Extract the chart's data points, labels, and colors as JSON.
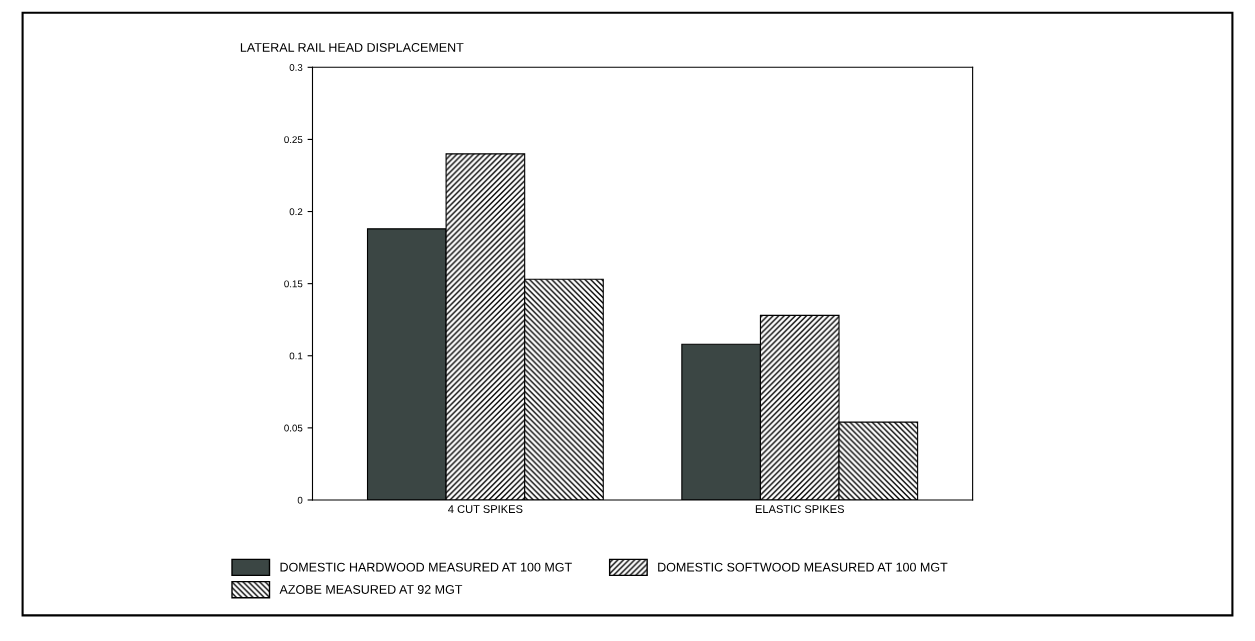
{
  "chart_data": {
    "type": "bar",
    "ylabel": "LATERAL RAIL HEAD DISPLACEMENT",
    "categories": [
      "4 CUT SPIKES",
      "ELASTIC SPIKES"
    ],
    "series": [
      {
        "name": "DOMESTIC HARDWOOD MEASURED AT 100 MGT",
        "color": "#3b4644",
        "values": [
          0.188,
          0.108
        ]
      },
      {
        "name": "DOMESTIC SOFTWOOD MEASURED AT 100 MGT",
        "color": "#000000",
        "values": [
          0.24,
          0.128
        ]
      },
      {
        "name": "AZOBE MEASURED AT 92 MGT",
        "color": "#000000",
        "values": [
          0.153,
          0.054
        ]
      }
    ],
    "ylim": [
      0,
      0.3
    ],
    "yticks": [
      0,
      0.05,
      0.1,
      0.15,
      0.2,
      0.25,
      0.3
    ],
    "grid": false,
    "legend": "bottom"
  }
}
